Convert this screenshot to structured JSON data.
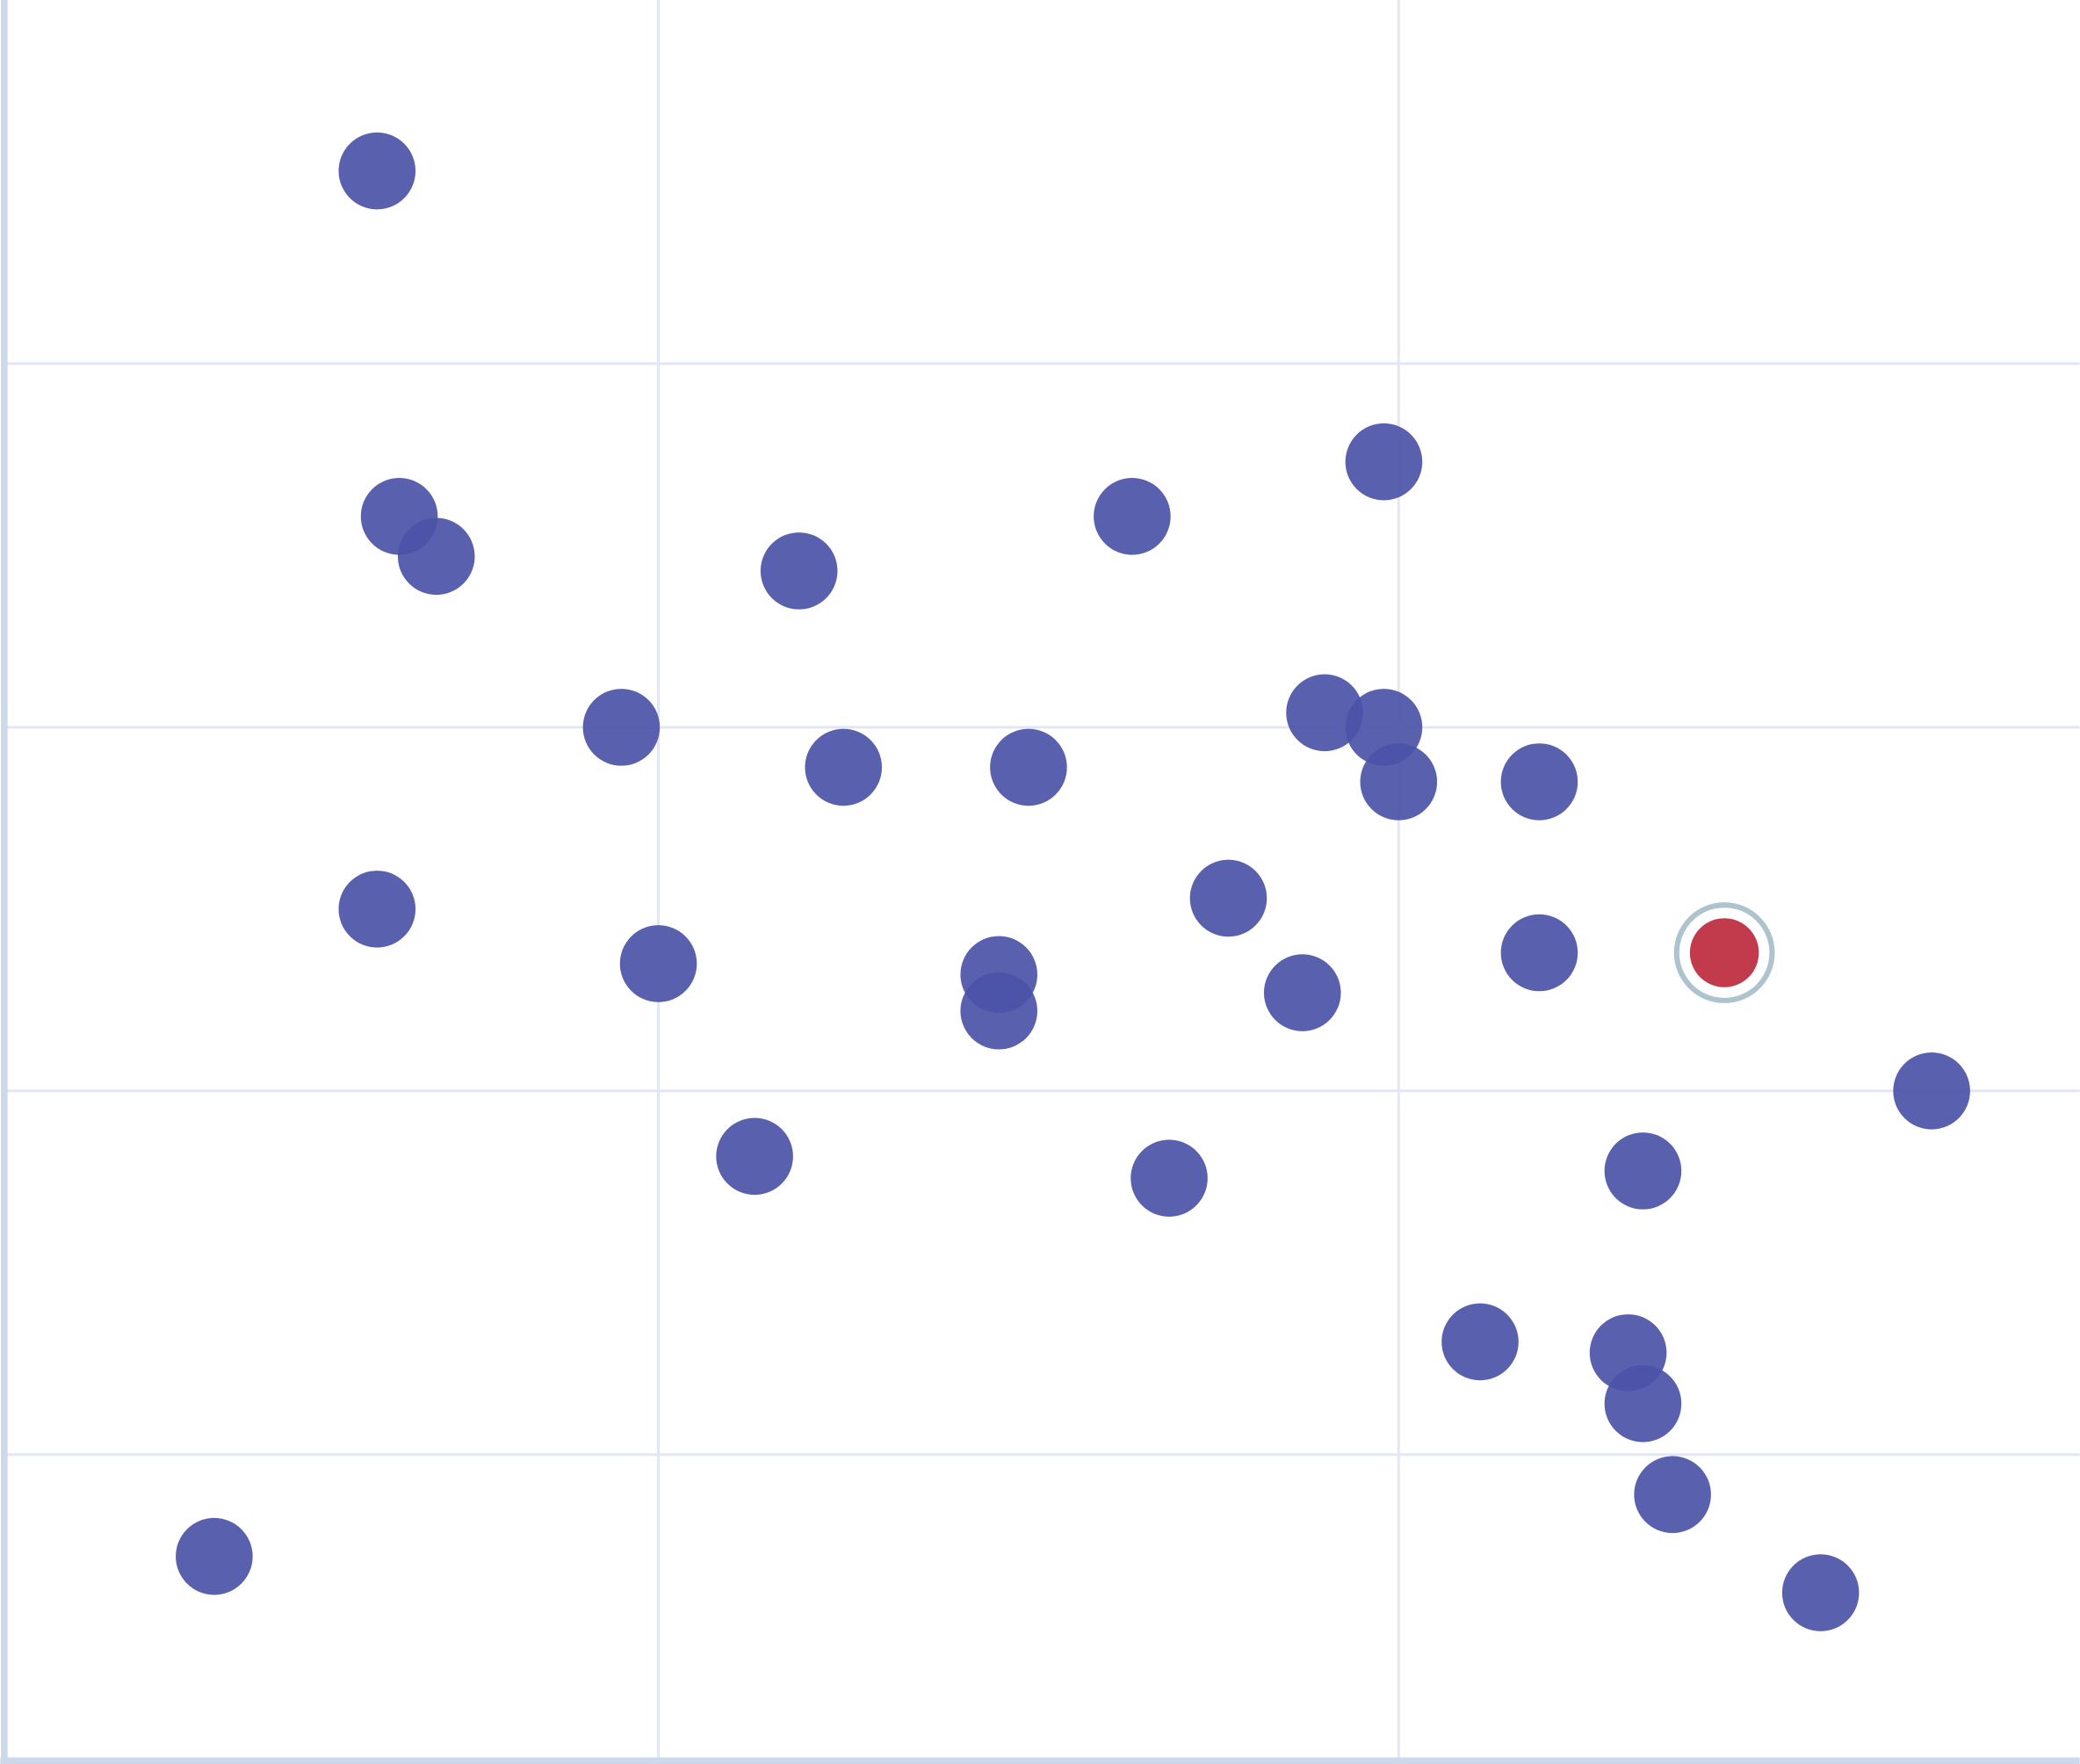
{
  "chart_data": {
    "type": "scatter",
    "title": "",
    "xlabel": "",
    "ylabel": "",
    "xlim": [
      0.12,
      2.92
    ],
    "ylim": [
      0.16,
      5.0
    ],
    "x_gridlines": [
      1,
      2
    ],
    "y_gridlines": [
      1,
      2,
      3,
      4
    ],
    "grid": true,
    "legend": "none",
    "colors": {
      "point": "#4b54a8",
      "highlight": "#c13b4d",
      "highlight_ring": "#adc3cd",
      "axis": "#cdd8ea",
      "grid": "#e4e7f3"
    },
    "points": [
      {
        "x": 0.62,
        "y": 4.53
      },
      {
        "x": 0.65,
        "y": 3.58
      },
      {
        "x": 0.7,
        "y": 3.47
      },
      {
        "x": 1.19,
        "y": 3.43
      },
      {
        "x": 1.64,
        "y": 3.58
      },
      {
        "x": 1.98,
        "y": 3.73
      },
      {
        "x": 0.95,
        "y": 3.0
      },
      {
        "x": 1.25,
        "y": 2.89
      },
      {
        "x": 1.5,
        "y": 2.89
      },
      {
        "x": 1.9,
        "y": 3.04
      },
      {
        "x": 1.98,
        "y": 3.0
      },
      {
        "x": 2.0,
        "y": 2.85
      },
      {
        "x": 2.19,
        "y": 2.85
      },
      {
        "x": 0.62,
        "y": 2.5
      },
      {
        "x": 1.0,
        "y": 2.35
      },
      {
        "x": 1.46,
        "y": 2.32
      },
      {
        "x": 1.46,
        "y": 2.22
      },
      {
        "x": 1.77,
        "y": 2.53
      },
      {
        "x": 1.87,
        "y": 2.27
      },
      {
        "x": 2.19,
        "y": 2.38
      },
      {
        "x": 2.72,
        "y": 2.0
      },
      {
        "x": 1.13,
        "y": 1.82
      },
      {
        "x": 1.69,
        "y": 1.76
      },
      {
        "x": 2.33,
        "y": 1.78
      },
      {
        "x": 2.11,
        "y": 1.31
      },
      {
        "x": 2.31,
        "y": 1.28
      },
      {
        "x": 2.33,
        "y": 1.14
      },
      {
        "x": 2.37,
        "y": 0.89
      },
      {
        "x": 0.4,
        "y": 0.72
      },
      {
        "x": 2.57,
        "y": 0.62
      }
    ],
    "highlighted_point": {
      "x": 2.44,
      "y": 2.38
    }
  }
}
